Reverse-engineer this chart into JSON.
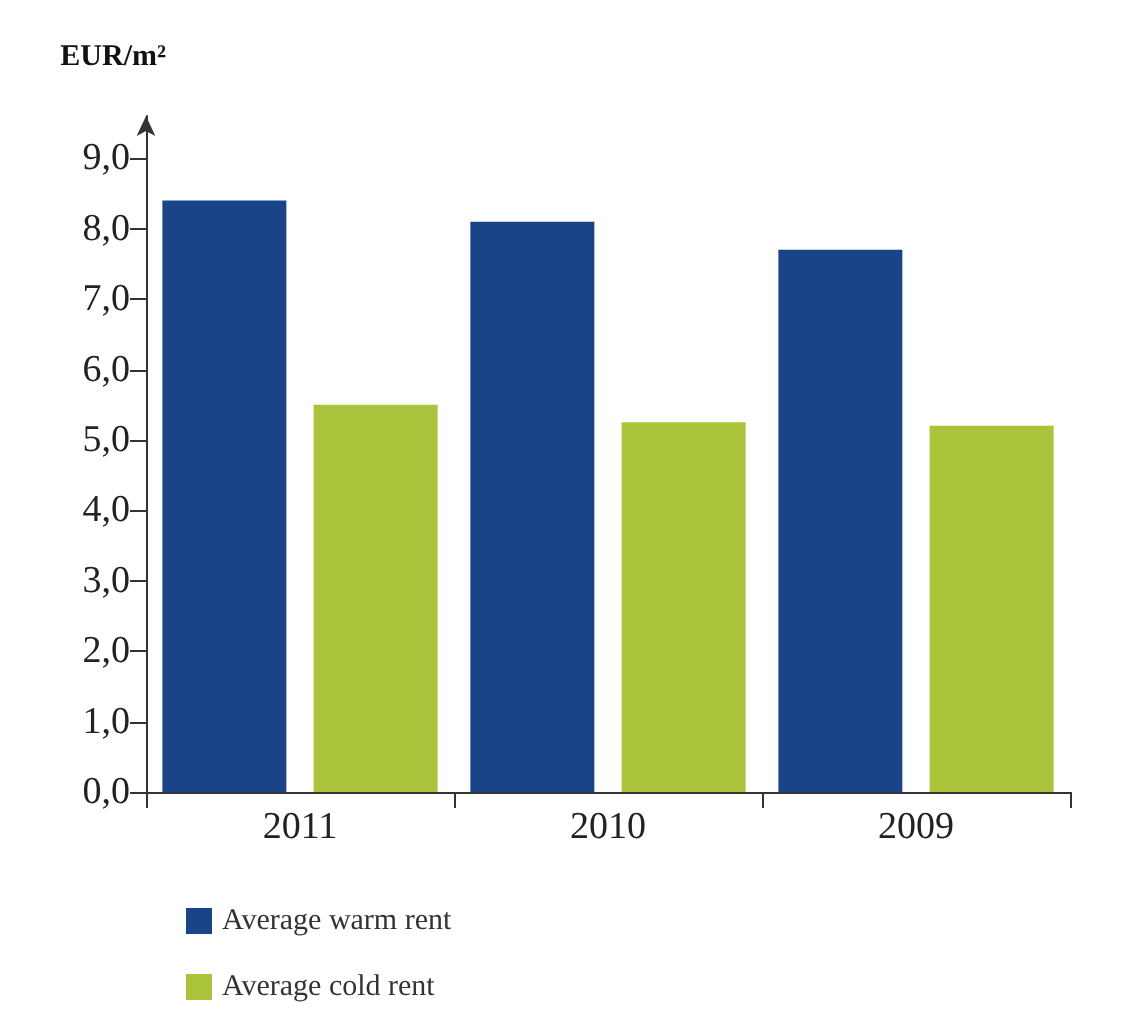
{
  "chart_data": {
    "type": "bar",
    "ylabel": "EUR/m²",
    "categories": [
      "2011",
      "2010",
      "2009"
    ],
    "series": [
      {
        "name": "Average warm rent",
        "color": "#1a4488",
        "values": [
          8.4,
          8.1,
          7.7
        ]
      },
      {
        "name": "Average cold rent",
        "color": "#a9c43a",
        "values": [
          5.5,
          5.25,
          5.2
        ]
      }
    ],
    "ylim": [
      0,
      9.6
    ],
    "yticks": [
      {
        "value": 0,
        "label": "0,0"
      },
      {
        "value": 1,
        "label": "1,0"
      },
      {
        "value": 2,
        "label": "2,0"
      },
      {
        "value": 3,
        "label": "3,0"
      },
      {
        "value": 4,
        "label": "4,0"
      },
      {
        "value": 5,
        "label": "5,0"
      },
      {
        "value": 6,
        "label": "6,0"
      },
      {
        "value": 7,
        "label": "7,0"
      },
      {
        "value": 8,
        "label": "8,0"
      },
      {
        "value": 9,
        "label": "9,0"
      }
    ],
    "grid": false,
    "legend": "bottom"
  }
}
